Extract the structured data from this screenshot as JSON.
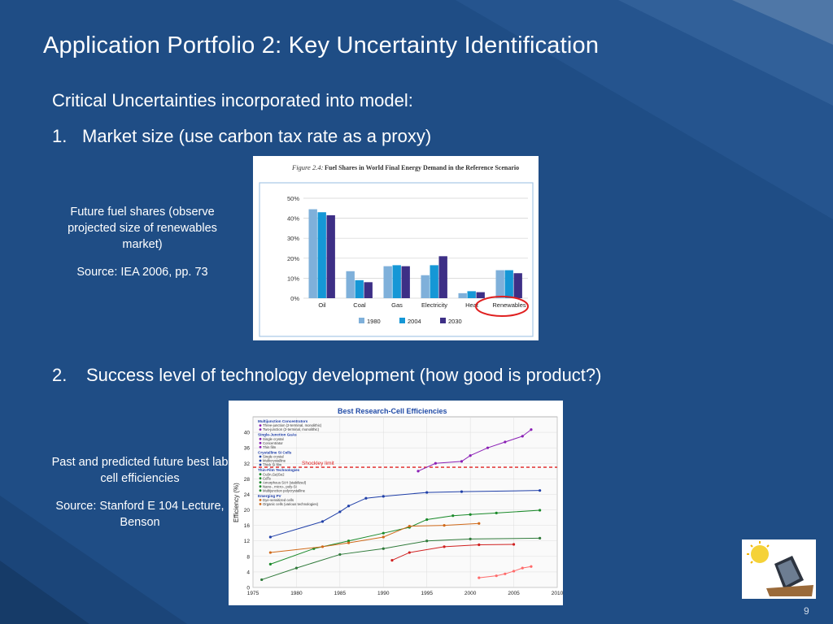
{
  "slide": {
    "title": "Application Portfolio 2: Key Uncertainty Identification",
    "intro": "Critical Uncertainties incorporated into model:",
    "item1_num": "1.",
    "item1_text": "Market size (use carbon tax rate as a proxy)",
    "item2_num": "2.",
    "item2_text": "Success level of technology development (how good is product?)",
    "page_number": "9"
  },
  "notes": {
    "fuel_caption": "Future fuel shares (observe projected size of renewables market)",
    "fuel_source": "Source: IEA 2006, pp. 73",
    "cell_caption": "Past and predicted future best lab cell efficiencies",
    "cell_source": "Source: Stanford E 104 Lecture, Benson"
  },
  "colors": {
    "background": "#1f4d85",
    "bar_1980": "#7fb0da",
    "bar_2004": "#1597d6",
    "bar_2030": "#3d2f86",
    "highlight_circle": "#e02020"
  },
  "chart_data": [
    {
      "type": "bar",
      "figure_label": "Figure 2.4:",
      "title": "Fuel Shares in World Final Energy Demand in the Reference Scenario",
      "categories": [
        "Oil",
        "Coal",
        "Gas",
        "Electricity",
        "Heat",
        "Renewables"
      ],
      "series": [
        {
          "name": "1980",
          "values": [
            44.5,
            13.5,
            16,
            11.5,
            2.5,
            14
          ]
        },
        {
          "name": "2004",
          "values": [
            43,
            9,
            16.5,
            16.5,
            3.5,
            14
          ]
        },
        {
          "name": "2030",
          "values": [
            41.5,
            8,
            16,
            21,
            3,
            12.5
          ]
        }
      ],
      "y_ticks": [
        "0%",
        "10%",
        "20%",
        "30%",
        "40%",
        "50%"
      ],
      "ylim": [
        0,
        50
      ],
      "legend_position": "bottom",
      "highlighted_category": "Renewables"
    },
    {
      "type": "line",
      "title": "Best Research-Cell Efficiencies",
      "ylabel": "Efficiency (%)",
      "xlim": [
        1975,
        2010
      ],
      "ylim": [
        0,
        44
      ],
      "x_ticks": [
        "1975",
        "1980",
        "1985",
        "1990",
        "1995",
        "2000",
        "2005",
        "2010"
      ],
      "y_ticks": [
        "0",
        "4",
        "8",
        "12",
        "16",
        "20",
        "24",
        "28",
        "32",
        "36",
        "40"
      ],
      "reference_line": {
        "label": "Shockley limit",
        "y": 31
      },
      "legend_groups": [
        {
          "group": "Multijunction Concentrators",
          "entries": [
            "Three-junction (2-terminal, monolithic)",
            "Two-junction (2-terminal, monolithic)"
          ]
        },
        {
          "group": "Single-Junction GaAs",
          "entries": [
            "Single crystal",
            "Concentrator",
            "Thin film"
          ]
        },
        {
          "group": "Crystalline Si Cells",
          "entries": [
            "Single crystal",
            "Multicrystalline",
            "Thick Si film"
          ]
        },
        {
          "group": "Thin-Film Technologies",
          "entries": [
            "Cu(In,Ga)Se2",
            "CdTe",
            "Amorphous Si:H (stabilized)",
            "Nano-, micro-, poly-Si",
            "Multijunction polycrystalline"
          ]
        },
        {
          "group": "Emerging PV",
          "entries": [
            "Dye-sensitized cells",
            "Organic cells (various technologies)"
          ]
        }
      ],
      "series": [
        {
          "name": "Three-junction (2-terminal, monolithic)",
          "x": [
            1994,
            1996,
            1999,
            2000,
            2002,
            2004,
            2006,
            2007
          ],
          "y": [
            30,
            32,
            32.5,
            34,
            36,
            37.5,
            39,
            40.7
          ]
        },
        {
          "name": "Crystalline Si single crystal",
          "x": [
            1977,
            1983,
            1985,
            1986,
            1988,
            1990,
            1995,
            1999,
            2008
          ],
          "y": [
            13,
            17,
            19.5,
            21,
            23,
            23.5,
            24.5,
            24.7,
            25
          ]
        },
        {
          "name": "Cu(In,Ga)Se2",
          "x": [
            1977,
            1982,
            1986,
            1990,
            1993,
            1995,
            1998,
            2000,
            2003,
            2008
          ],
          "y": [
            6,
            10,
            12,
            14,
            15.5,
            17.5,
            18.5,
            18.8,
            19.2,
            19.9
          ]
        },
        {
          "name": "CdTe",
          "x": [
            1977,
            1983,
            1986,
            1990,
            1993,
            1997,
            2001
          ],
          "y": [
            9,
            10.5,
            11.5,
            13,
            15.8,
            16,
            16.5
          ]
        },
        {
          "name": "Amorphous Si:H (stabilized)",
          "x": [
            1976,
            1980,
            1985,
            1990,
            1995,
            2000,
            2008
          ],
          "y": [
            2,
            5,
            8.5,
            10,
            12,
            12.5,
            12.7
          ]
        },
        {
          "name": "Dye-sensitized cells",
          "x": [
            1991,
            1993,
            1997,
            2001,
            2005
          ],
          "y": [
            7,
            9,
            10.5,
            11,
            11.1
          ]
        },
        {
          "name": "Organic cells (various technologies)",
          "x": [
            2001,
            2003,
            2004,
            2005,
            2006,
            2007
          ],
          "y": [
            2.5,
            3,
            3.5,
            4.2,
            5,
            5.4
          ]
        }
      ]
    }
  ]
}
